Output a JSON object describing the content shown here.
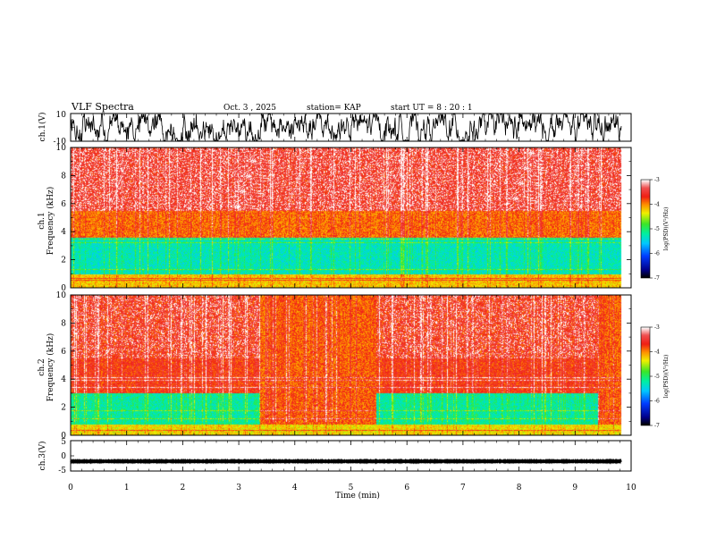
{
  "header": {
    "title": "VLF Spectra",
    "date": "Oct. 3 , 2025",
    "station": "station= KAP",
    "start": "start  UT  =   8  : 20 : 1"
  },
  "chart_data": {
    "type": "heatmap",
    "title": "VLF Spectra",
    "xlabel": "Time  (min)",
    "xlim": [
      0,
      10
    ],
    "x_ticks": [
      "0",
      "1",
      "2",
      "3",
      "4",
      "5",
      "6",
      "7",
      "8",
      "9",
      "10"
    ],
    "data_end_min": 9.82,
    "panels": [
      {
        "name": "ch1-waveform",
        "type": "line",
        "ylabel": "ch.1(V)",
        "ylim": [
          -10,
          10
        ],
        "y_ticks": [
          "10",
          "-10"
        ],
        "description_values": {
          "mean": 0,
          "amplitude": 6
        }
      },
      {
        "name": "ch1-spectrogram",
        "type": "heatmap",
        "ylabel_channel": "ch.1",
        "ylabel": "Frequency  (kHz)",
        "ylim": [
          0,
          10
        ],
        "y_ticks": [
          "0",
          "2",
          "4",
          "6",
          "8",
          "10"
        ],
        "colorbar": {
          "label": "log(PSD)(V²/Hz)",
          "range": [
            -7,
            -3
          ],
          "ticks": [
            "-3",
            "-4",
            "-5",
            "-6",
            "-7"
          ]
        },
        "bands": [
          {
            "from_khz": 0.0,
            "to_khz": 1.0,
            "level": -4.2
          },
          {
            "from_khz": 1.0,
            "to_khz": 3.6,
            "level": -5.3
          },
          {
            "from_khz": 3.6,
            "to_khz": 5.5,
            "level": -3.9
          },
          {
            "from_khz": 5.5,
            "to_khz": 10.0,
            "level": -3.6
          }
        ]
      },
      {
        "name": "ch2-spectrogram",
        "type": "heatmap",
        "ylabel_channel": "ch.2",
        "ylabel": "Frequency  (kHz)",
        "ylim": [
          0,
          10
        ],
        "y_ticks": [
          "0",
          "2",
          "4",
          "6",
          "8",
          "10"
        ],
        "colorbar": {
          "label": "log(PSD)(V²/Hz)",
          "range": [
            -7,
            -3
          ],
          "ticks": [
            "-3",
            "-4",
            "-5",
            "-6",
            "-7"
          ]
        },
        "bands": [
          {
            "from_khz": 0.0,
            "to_khz": 0.8,
            "level": -4.3
          },
          {
            "from_khz": 0.8,
            "to_khz": 3.0,
            "level": -5.2
          },
          {
            "from_khz": 3.0,
            "to_khz": 10.0,
            "level": -3.7
          }
        ],
        "quiet_intervals_min": [
          [
            3.38,
            5.45
          ],
          [
            9.4,
            9.82
          ]
        ]
      },
      {
        "name": "ch3-waveform",
        "type": "line",
        "ylabel": "ch.3(V)",
        "ylim": [
          -5,
          5
        ],
        "y_ticks": [
          "5",
          "0",
          "-5"
        ],
        "description_values": {
          "mean": -1.8,
          "amplitude": 0.25
        }
      }
    ]
  },
  "colors": {
    "axis": "#000000",
    "trace": "#000000"
  }
}
